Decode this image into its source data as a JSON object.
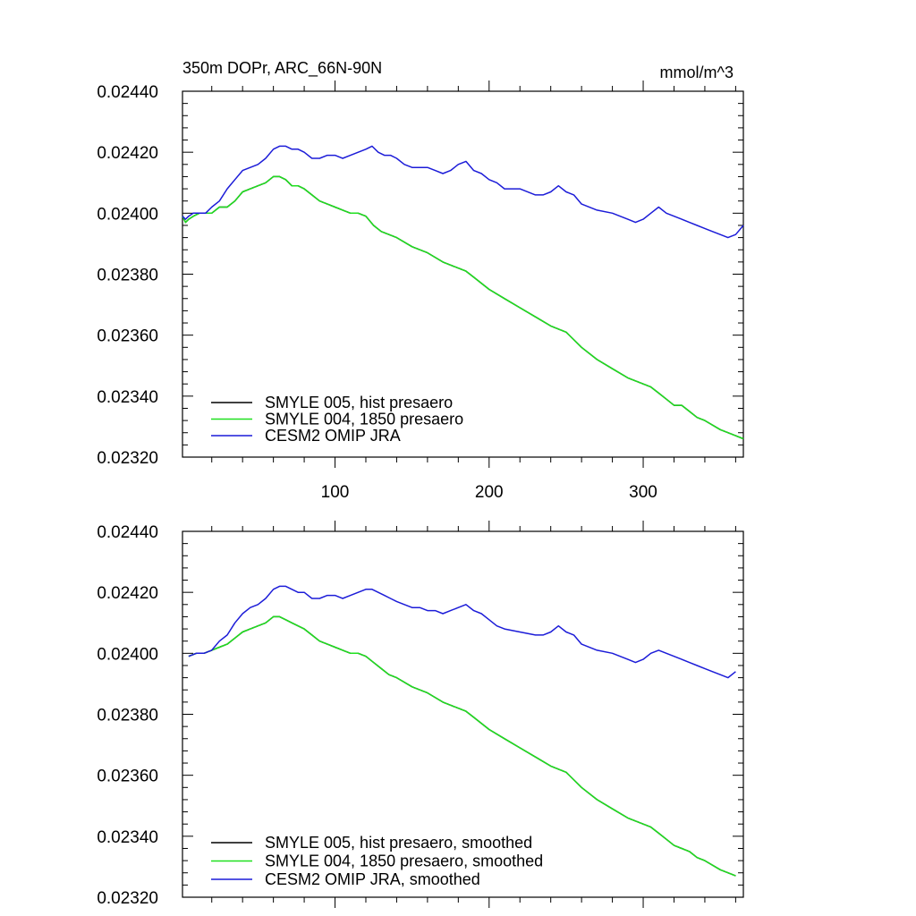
{
  "chart_data": [
    {
      "type": "line",
      "title": "350m DOPr, ARC_66N-90N",
      "units": "mmol/m^3",
      "xlim": [
        1,
        365
      ],
      "ylim": [
        0.0232,
        0.0244
      ],
      "xticks": [
        100,
        200,
        300
      ],
      "xtick_labels": [
        "100",
        "200",
        "300"
      ],
      "yticks": [
        0.0232,
        0.0234,
        0.0236,
        0.0238,
        0.024,
        0.0242,
        0.0244
      ],
      "ytick_labels": [
        "0.02320",
        "0.02340",
        "0.02360",
        "0.02380",
        "0.02400",
        "0.02420",
        "0.02440"
      ],
      "grid": false,
      "legend_position": "bottom-left",
      "series": [
        {
          "name": "SMYLE 005, hist presaero",
          "color": "#000000",
          "x": [
            1,
            3,
            5,
            8,
            12,
            16,
            20,
            25,
            30,
            35,
            40,
            45,
            50,
            55,
            60,
            64,
            68,
            72,
            76,
            80,
            85,
            90,
            95,
            100,
            105,
            110,
            115,
            120,
            125,
            130,
            135,
            140,
            150,
            160,
            170,
            180,
            185,
            190,
            200,
            210,
            220,
            230,
            240,
            250,
            260,
            270,
            280,
            290,
            300,
            305,
            310,
            315,
            320,
            325,
            330,
            335,
            340,
            350,
            360,
            365
          ],
          "y": [
            0.02399,
            0.02397,
            0.02398,
            0.02399,
            0.024,
            0.024,
            0.024,
            0.02402,
            0.02402,
            0.02404,
            0.02407,
            0.02408,
            0.02409,
            0.0241,
            0.02412,
            0.02412,
            0.02411,
            0.02409,
            0.02409,
            0.02408,
            0.02406,
            0.02404,
            0.02403,
            0.02402,
            0.02401,
            0.024,
            0.024,
            0.02399,
            0.02396,
            0.02394,
            0.02393,
            0.02392,
            0.02389,
            0.02387,
            0.02384,
            0.02382,
            0.02381,
            0.02379,
            0.02375,
            0.02372,
            0.02369,
            0.02366,
            0.02363,
            0.02361,
            0.02356,
            0.02352,
            0.02349,
            0.02346,
            0.02344,
            0.02343,
            0.02341,
            0.02339,
            0.02337,
            0.02337,
            0.02335,
            0.02333,
            0.02332,
            0.02329,
            0.02327,
            0.02326
          ]
        },
        {
          "name": "SMYLE 004, 1850 presaero",
          "color": "#1fe01f",
          "x": [
            1,
            3,
            5,
            8,
            12,
            16,
            20,
            25,
            30,
            35,
            40,
            45,
            50,
            55,
            60,
            64,
            68,
            72,
            76,
            80,
            85,
            90,
            95,
            100,
            105,
            110,
            115,
            120,
            125,
            130,
            135,
            140,
            150,
            160,
            170,
            180,
            185,
            190,
            200,
            210,
            220,
            230,
            240,
            250,
            260,
            270,
            280,
            290,
            300,
            305,
            310,
            315,
            320,
            325,
            330,
            335,
            340,
            350,
            360,
            365
          ],
          "y": [
            0.02399,
            0.02397,
            0.02398,
            0.02399,
            0.024,
            0.024,
            0.024,
            0.02402,
            0.02402,
            0.02404,
            0.02407,
            0.02408,
            0.02409,
            0.0241,
            0.02412,
            0.02412,
            0.02411,
            0.02409,
            0.02409,
            0.02408,
            0.02406,
            0.02404,
            0.02403,
            0.02402,
            0.02401,
            0.024,
            0.024,
            0.02399,
            0.02396,
            0.02394,
            0.02393,
            0.02392,
            0.02389,
            0.02387,
            0.02384,
            0.02382,
            0.02381,
            0.02379,
            0.02375,
            0.02372,
            0.02369,
            0.02366,
            0.02363,
            0.02361,
            0.02356,
            0.02352,
            0.02349,
            0.02346,
            0.02344,
            0.02343,
            0.02341,
            0.02339,
            0.02337,
            0.02337,
            0.02335,
            0.02333,
            0.02332,
            0.02329,
            0.02327,
            0.02326
          ]
        },
        {
          "name": "CESM2 OMIP JRA",
          "color": "#1c1cd8",
          "x": [
            1,
            3,
            5,
            8,
            12,
            16,
            20,
            25,
            30,
            35,
            40,
            45,
            50,
            55,
            60,
            64,
            68,
            72,
            76,
            80,
            85,
            90,
            95,
            100,
            105,
            110,
            115,
            120,
            124,
            128,
            132,
            136,
            140,
            145,
            150,
            155,
            160,
            165,
            170,
            175,
            180,
            185,
            190,
            195,
            200,
            205,
            210,
            220,
            230,
            235,
            240,
            245,
            250,
            255,
            260,
            270,
            280,
            290,
            295,
            300,
            305,
            310,
            315,
            320,
            325,
            330,
            335,
            340,
            345,
            350,
            355,
            360,
            365
          ],
          "y": [
            0.02399,
            0.02398,
            0.02399,
            0.024,
            0.024,
            0.024,
            0.02402,
            0.02404,
            0.02408,
            0.02411,
            0.02414,
            0.02415,
            0.02416,
            0.02418,
            0.02421,
            0.02422,
            0.02422,
            0.02421,
            0.02421,
            0.0242,
            0.02418,
            0.02418,
            0.02419,
            0.02419,
            0.02418,
            0.02419,
            0.0242,
            0.02421,
            0.02422,
            0.0242,
            0.02419,
            0.02419,
            0.02418,
            0.02416,
            0.02415,
            0.02415,
            0.02415,
            0.02414,
            0.02413,
            0.02414,
            0.02416,
            0.02417,
            0.02414,
            0.02413,
            0.02411,
            0.0241,
            0.02408,
            0.02408,
            0.02406,
            0.02406,
            0.02407,
            0.02409,
            0.02407,
            0.02406,
            0.02403,
            0.02401,
            0.024,
            0.02398,
            0.02397,
            0.02398,
            0.024,
            0.02402,
            0.024,
            0.02399,
            0.02398,
            0.02397,
            0.02396,
            0.02395,
            0.02394,
            0.02393,
            0.02392,
            0.02393,
            0.02396
          ]
        }
      ]
    },
    {
      "type": "line",
      "xlim": [
        1,
        365
      ],
      "ylim": [
        0.0232,
        0.0244
      ],
      "xticks": [
        100,
        200,
        300
      ],
      "xtick_labels": [],
      "yticks": [
        0.0232,
        0.0234,
        0.0236,
        0.0238,
        0.024,
        0.0242,
        0.0244
      ],
      "ytick_labels": [
        "0.02320",
        "0.02340",
        "0.02360",
        "0.02380",
        "0.02400",
        "0.02420",
        "0.02440"
      ],
      "grid": false,
      "legend_position": "bottom-left",
      "series": [
        {
          "name": "SMYLE 005, hist presaero, smoothed",
          "color": "#000000",
          "x": [
            5,
            10,
            15,
            20,
            25,
            30,
            35,
            40,
            45,
            50,
            55,
            60,
            64,
            68,
            72,
            76,
            80,
            85,
            90,
            95,
            100,
            105,
            110,
            115,
            120,
            125,
            130,
            135,
            140,
            150,
            160,
            170,
            180,
            185,
            190,
            200,
            210,
            220,
            230,
            240,
            250,
            260,
            270,
            280,
            290,
            300,
            305,
            310,
            315,
            320,
            325,
            330,
            335,
            340,
            350,
            360
          ],
          "y": [
            0.02399,
            0.024,
            0.024,
            0.02401,
            0.02402,
            0.02403,
            0.02405,
            0.02407,
            0.02408,
            0.02409,
            0.0241,
            0.02412,
            0.02412,
            0.02411,
            0.0241,
            0.02409,
            0.02408,
            0.02406,
            0.02404,
            0.02403,
            0.02402,
            0.02401,
            0.024,
            0.024,
            0.02399,
            0.02397,
            0.02395,
            0.02393,
            0.02392,
            0.02389,
            0.02387,
            0.02384,
            0.02382,
            0.02381,
            0.02379,
            0.02375,
            0.02372,
            0.02369,
            0.02366,
            0.02363,
            0.02361,
            0.02356,
            0.02352,
            0.02349,
            0.02346,
            0.02344,
            0.02343,
            0.02341,
            0.02339,
            0.02337,
            0.02336,
            0.02335,
            0.02333,
            0.02332,
            0.02329,
            0.02327
          ]
        },
        {
          "name": "SMYLE 004, 1850 presaero, smoothed",
          "color": "#1fe01f",
          "x": [
            5,
            10,
            15,
            20,
            25,
            30,
            35,
            40,
            45,
            50,
            55,
            60,
            64,
            68,
            72,
            76,
            80,
            85,
            90,
            95,
            100,
            105,
            110,
            115,
            120,
            125,
            130,
            135,
            140,
            150,
            160,
            170,
            180,
            185,
            190,
            200,
            210,
            220,
            230,
            240,
            250,
            260,
            270,
            280,
            290,
            300,
            305,
            310,
            315,
            320,
            325,
            330,
            335,
            340,
            350,
            360
          ],
          "y": [
            0.02399,
            0.024,
            0.024,
            0.02401,
            0.02402,
            0.02403,
            0.02405,
            0.02407,
            0.02408,
            0.02409,
            0.0241,
            0.02412,
            0.02412,
            0.02411,
            0.0241,
            0.02409,
            0.02408,
            0.02406,
            0.02404,
            0.02403,
            0.02402,
            0.02401,
            0.024,
            0.024,
            0.02399,
            0.02397,
            0.02395,
            0.02393,
            0.02392,
            0.02389,
            0.02387,
            0.02384,
            0.02382,
            0.02381,
            0.02379,
            0.02375,
            0.02372,
            0.02369,
            0.02366,
            0.02363,
            0.02361,
            0.02356,
            0.02352,
            0.02349,
            0.02346,
            0.02344,
            0.02343,
            0.02341,
            0.02339,
            0.02337,
            0.02336,
            0.02335,
            0.02333,
            0.02332,
            0.02329,
            0.02327
          ]
        },
        {
          "name": "CESM2 OMIP JRA, smoothed",
          "color": "#1c1cd8",
          "x": [
            5,
            10,
            15,
            20,
            25,
            30,
            35,
            40,
            45,
            50,
            55,
            60,
            64,
            68,
            72,
            76,
            80,
            85,
            90,
            95,
            100,
            105,
            110,
            115,
            120,
            124,
            128,
            132,
            136,
            140,
            145,
            150,
            155,
            160,
            165,
            170,
            175,
            180,
            185,
            190,
            195,
            200,
            205,
            210,
            220,
            230,
            235,
            240,
            245,
            250,
            255,
            260,
            270,
            280,
            290,
            295,
            300,
            305,
            310,
            315,
            320,
            325,
            330,
            335,
            340,
            345,
            350,
            355,
            360
          ],
          "y": [
            0.02399,
            0.024,
            0.024,
            0.02401,
            0.02404,
            0.02406,
            0.0241,
            0.02413,
            0.02415,
            0.02416,
            0.02418,
            0.02421,
            0.02422,
            0.02422,
            0.02421,
            0.0242,
            0.0242,
            0.02418,
            0.02418,
            0.02419,
            0.02419,
            0.02418,
            0.02419,
            0.0242,
            0.02421,
            0.02421,
            0.0242,
            0.02419,
            0.02418,
            0.02417,
            0.02416,
            0.02415,
            0.02415,
            0.02414,
            0.02414,
            0.02413,
            0.02414,
            0.02415,
            0.02416,
            0.02414,
            0.02413,
            0.02411,
            0.02409,
            0.02408,
            0.02407,
            0.02406,
            0.02406,
            0.02407,
            0.02409,
            0.02407,
            0.02406,
            0.02403,
            0.02401,
            0.024,
            0.02398,
            0.02397,
            0.02398,
            0.024,
            0.02401,
            0.024,
            0.02399,
            0.02398,
            0.02397,
            0.02396,
            0.02395,
            0.02394,
            0.02393,
            0.02392,
            0.02394
          ]
        }
      ]
    }
  ]
}
